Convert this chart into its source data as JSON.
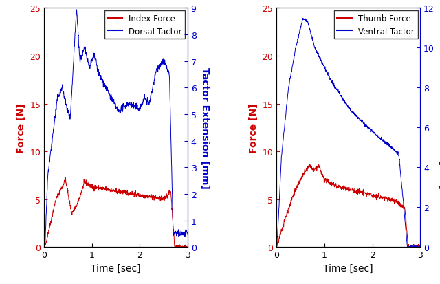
{
  "left": {
    "xlabel": "Time [sec]",
    "ylabel_left": "Force [N]",
    "ylabel_right": "Tactor Extension [mm]",
    "legend1": "Index Force",
    "legend2": "Dorsal Tactor",
    "color_force": "#cc0000",
    "color_tactor": "#0000cc",
    "ylim_left": [
      0,
      25
    ],
    "ylim_right": [
      0,
      9
    ],
    "xlim": [
      0,
      3
    ],
    "yticks_left": [
      0,
      5,
      10,
      15,
      20,
      25
    ],
    "yticks_right": [
      0,
      1,
      2,
      3,
      4,
      5,
      6,
      7,
      8,
      9
    ],
    "xticks": [
      0,
      1,
      2,
      3
    ]
  },
  "right": {
    "xlabel": "Time [sec]",
    "ylabel_left": "Force [N]",
    "ylabel_right": "Tactor Extension [mm]",
    "legend1": "Thumb Force",
    "legend2": "Ventral Tactor",
    "color_force": "#cc0000",
    "color_tactor": "#0000cc",
    "ylim_left": [
      0,
      25
    ],
    "ylim_right": [
      0,
      12
    ],
    "xlim": [
      0,
      3
    ],
    "yticks_left": [
      0,
      5,
      10,
      15,
      20,
      25
    ],
    "yticks_right": [
      0,
      2,
      4,
      6,
      8,
      10,
      12
    ],
    "xticks": [
      0,
      1,
      2,
      3
    ]
  },
  "fig_width": 6.4,
  "fig_height": 4.14,
  "dpi": 100
}
